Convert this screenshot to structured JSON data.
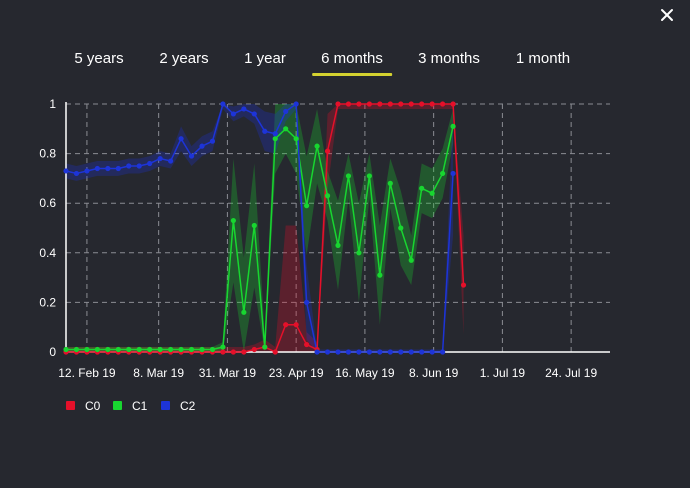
{
  "tabs": [
    {
      "label": "5 years",
      "active": false
    },
    {
      "label": "2 years",
      "active": false
    },
    {
      "label": "1 year",
      "active": false
    },
    {
      "label": "6 months",
      "active": true
    },
    {
      "label": "3 months",
      "active": false
    },
    {
      "label": "1 month",
      "active": false
    }
  ],
  "close_icon": "close-icon",
  "colors": {
    "background": "#26282f",
    "accent": "#d4d230",
    "C0": "#e5102a",
    "C1": "#18d630",
    "C2": "#1d34d8"
  },
  "chart_data": {
    "type": "line",
    "x_start": "2019-02-05",
    "x_step_days": 3.5,
    "x_ticks": [
      {
        "date": "2019-02-12",
        "label": "12. Feb 19"
      },
      {
        "date": "2019-03-08",
        "label": "8. Mar 19"
      },
      {
        "date": "2019-03-31",
        "label": "31. Mar 19"
      },
      {
        "date": "2019-04-23",
        "label": "23. Apr 19"
      },
      {
        "date": "2019-05-16",
        "label": "16. May 19"
      },
      {
        "date": "2019-06-08",
        "label": "8. Jun 19"
      },
      {
        "date": "2019-07-01",
        "label": "1. Jul 19"
      },
      {
        "date": "2019-07-24",
        "label": "24. Jul 19"
      }
    ],
    "y_ticks": [
      "0",
      "0.2",
      "0.4",
      "0.6",
      "0.8",
      "1"
    ],
    "ylim": [
      0,
      1
    ],
    "grid": true,
    "legend": "bottom-left",
    "series": [
      {
        "name": "C0",
        "values": [
          0,
          0,
          0,
          0,
          0,
          0,
          0,
          0,
          0,
          0,
          0,
          0,
          0,
          0,
          0,
          0,
          0,
          0,
          0.01,
          0.02,
          0,
          0.11,
          0.11,
          0.03,
          0.01,
          0.81,
          1,
          1,
          1,
          1,
          1,
          1,
          1,
          1,
          1,
          1,
          1,
          1,
          0.27
        ],
        "band": [
          0.02,
          0.02,
          0.02,
          0.02,
          0.02,
          0.02,
          0.02,
          0.02,
          0.02,
          0.02,
          0.02,
          0.02,
          0.02,
          0.02,
          0.02,
          0.02,
          0.02,
          0.02,
          0.02,
          0.03,
          0.02,
          0.4,
          0.4,
          0.05,
          0.03,
          0.15,
          0.02,
          0.02,
          0.02,
          0.02,
          0.02,
          0.02,
          0.02,
          0.02,
          0.02,
          0.02,
          0.02,
          0.02,
          0.2
        ]
      },
      {
        "name": "C1",
        "values": [
          0.01,
          0.01,
          0.01,
          0.01,
          0.01,
          0.01,
          0.01,
          0.01,
          0.01,
          0.01,
          0.01,
          0.01,
          0.01,
          0.01,
          0.01,
          0.02,
          0.53,
          0.16,
          0.51,
          0.02,
          0.86,
          0.9,
          0.86,
          0.59,
          0.83,
          0.63,
          0.43,
          0.71,
          0.4,
          0.71,
          0.31,
          0.68,
          0.5,
          0.37,
          0.66,
          0.64,
          0.72,
          0.91,
          null
        ],
        "band": [
          0.01,
          0.01,
          0.01,
          0.01,
          0.01,
          0.01,
          0.01,
          0.01,
          0.01,
          0.01,
          0.01,
          0.01,
          0.01,
          0.01,
          0.01,
          0.02,
          0.25,
          0.22,
          0.25,
          0.05,
          0.14,
          0.1,
          0.14,
          0.2,
          0.15,
          0.1,
          0.18,
          0.09,
          0.2,
          0.09,
          0.2,
          0.1,
          0.15,
          0.1,
          0.1,
          0.1,
          0.1,
          0.07,
          0.1
        ]
      },
      {
        "name": "C2",
        "values": [
          0.73,
          0.72,
          0.73,
          0.74,
          0.74,
          0.74,
          0.75,
          0.75,
          0.76,
          0.78,
          0.77,
          0.86,
          0.79,
          0.83,
          0.85,
          1,
          0.96,
          0.98,
          0.96,
          0.89,
          0.88,
          0.97,
          1,
          0.2,
          0,
          0,
          0,
          0,
          0,
          0,
          0,
          0,
          0,
          0,
          0,
          0,
          0,
          0.72,
          null
        ],
        "band": [
          0.03,
          0.03,
          0.03,
          0.03,
          0.03,
          0.03,
          0.03,
          0.03,
          0.03,
          0.03,
          0.03,
          0.05,
          0.04,
          0.04,
          0.04,
          0.02,
          0.03,
          0.03,
          0.04,
          0.08,
          0.08,
          0.04,
          0.02,
          0.15,
          0.01,
          0.01,
          0.01,
          0.01,
          0.01,
          0.01,
          0.01,
          0.01,
          0.01,
          0.01,
          0.01,
          0.01,
          0.01,
          0.25,
          0.1
        ]
      }
    ]
  }
}
